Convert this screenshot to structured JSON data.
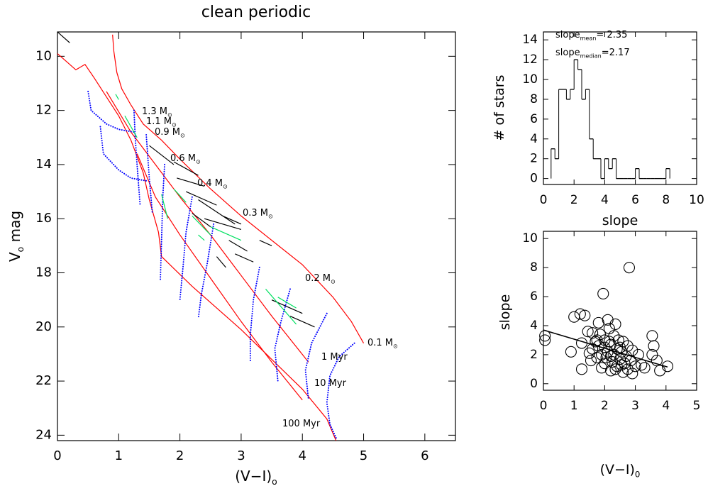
{
  "chart_data": [
    {
      "type": "line",
      "title": "clean periodic",
      "x_label": {
        "text": "(V−I)",
        "sub": "o"
      },
      "y_label": {
        "text": "V",
        "sub": "o",
        "rest": " mag"
      },
      "xlim": [
        0,
        6.5
      ],
      "ylim": [
        24.2,
        9.1
      ],
      "xticks": [
        0,
        1,
        2,
        3,
        4,
        5,
        6
      ],
      "yticks": [
        10,
        12,
        14,
        16,
        18,
        20,
        22,
        24
      ],
      "tracks": [
        {
          "color": "#ff0000",
          "style": "solid",
          "lines": [
            {
              "x": [
                0,
                0.15,
                0.3,
                0.45,
                0.6,
                0.8,
                1.0,
                1.2,
                1.4,
                1.5,
                1.65,
                1.7,
                2.2,
                3,
                3.5,
                4,
                4.4,
                4.55
              ],
              "y": [
                9.9,
                10.2,
                10.5,
                10.3,
                10.8,
                11.5,
                12.2,
                13.1,
                14.3,
                15.3,
                16.5,
                17.4,
                18.5,
                20.1,
                21.2,
                22.3,
                23.4,
                24.2
              ]
            },
            {
              "x": [
                0.9,
                0.92,
                0.97,
                1.05,
                1.2,
                1.4,
                1.7,
                2.0,
                2.5,
                3.0,
                3.5,
                4.0,
                4.5,
                4.8,
                5.0
              ],
              "y": [
                9.2,
                9.8,
                10.6,
                11.2,
                11.8,
                12.5,
                13.1,
                13.8,
                14.9,
                15.9,
                16.8,
                17.7,
                18.9,
                19.8,
                20.6
              ]
            },
            {
              "x": [
                0.8,
                1.2,
                1.6,
                2,
                2.5,
                3,
                3.5,
                4.1
              ],
              "y": [
                11.3,
                12.8,
                14.0,
                15.2,
                16.6,
                18.1,
                19.6,
                21.3
              ]
            },
            {
              "x": [
                1.3,
                1.6,
                2,
                2.5,
                3,
                3.5,
                4.0
              ],
              "y": [
                13.6,
                15.2,
                16.6,
                18.2,
                19.8,
                21.3,
                22.7
              ]
            }
          ]
        },
        {
          "color": "#0000ff",
          "style": "dotted",
          "lines": [
            {
              "x": [
                0.5,
                0.55,
                0.8,
                1.0,
                1.25
              ],
              "y": [
                11.3,
                12,
                12.5,
                12.7,
                12.8
              ]
            },
            {
              "x": [
                0.7,
                0.75,
                1.0,
                1.2,
                1.45
              ],
              "y": [
                12.6,
                13.6,
                14.2,
                14.5,
                14.6
              ]
            },
            {
              "x": [
                1.25,
                1.27,
                1.3,
                1.35
              ],
              "y": [
                12,
                13,
                14,
                15.5
              ]
            },
            {
              "x": [
                1.45,
                1.5,
                1.55
              ],
              "y": [
                12.9,
                14.5,
                15.8
              ]
            },
            {
              "x": [
                1.75,
                1.72,
                1.7,
                1.68
              ],
              "y": [
                14.0,
                15.2,
                16.8,
                18.3
              ]
            },
            {
              "x": [
                2.2,
                2.1,
                2.05,
                2.0
              ],
              "y": [
                15.2,
                16.5,
                17.8,
                19.0
              ]
            },
            {
              "x": [
                2.55,
                2.45,
                2.35,
                2.3
              ],
              "y": [
                16.2,
                17.6,
                18.8,
                19.7
              ]
            },
            {
              "x": [
                3.3,
                3.2,
                3.15,
                3.15
              ],
              "y": [
                17.8,
                19,
                20.3,
                21.3
              ]
            },
            {
              "x": [
                3.8,
                3.65,
                3.55,
                3.6
              ],
              "y": [
                18.6,
                19.8,
                20.8,
                22
              ]
            },
            {
              "x": [
                4.4,
                4.15,
                4.05,
                4.1
              ],
              "y": [
                19.5,
                20.6,
                21.6,
                22.7
              ]
            },
            {
              "x": [
                4.85,
                4.6,
                4.45,
                4.4,
                4.45,
                4.55
              ],
              "y": [
                20.6,
                21.1,
                21.8,
                22.8,
                23.6,
                24.1
              ]
            }
          ]
        }
      ],
      "segments": [
        {
          "color": "#000000",
          "items": [
            [
              1.9,
              13.9,
              2.3,
              14.4
            ],
            [
              1.95,
              14.5,
              2.4,
              14.8
            ],
            [
              2.1,
              15.0,
              2.6,
              15.5
            ],
            [
              2.3,
              15.3,
              2.9,
              16.2
            ],
            [
              2.4,
              16.0,
              3.0,
              16.4
            ],
            [
              2.7,
              15.9,
              3.0,
              16.2
            ],
            [
              2.8,
              16.8,
              3.1,
              17.2
            ],
            [
              2.9,
              17.3,
              3.2,
              17.6
            ],
            [
              3.3,
              16.8,
              3.5,
              17.0
            ],
            [
              3.8,
              19.6,
              4.2,
              20.0
            ],
            [
              3.5,
              19.0,
              4.0,
              19.5
            ],
            [
              2.2,
              15.8,
              2.5,
              16.3
            ],
            [
              2.6,
              17.4,
              2.75,
              17.8
            ],
            [
              1.5,
              13.3,
              1.9,
              14.0
            ],
            [
              0.0,
              9.1,
              0.2,
              9.5
            ]
          ]
        },
        {
          "color": "#00e060",
          "items": [
            [
              0.95,
              11.4,
              1.0,
              11.6
            ],
            [
              1.7,
              15.1,
              1.8,
              16.0
            ],
            [
              2.2,
              15.9,
              2.5,
              16.6
            ],
            [
              2.5,
              16.3,
              3.0,
              16.8
            ],
            [
              3.4,
              18.6,
              3.9,
              19.9
            ],
            [
              3.6,
              18.9,
              3.9,
              19.3
            ],
            [
              1.1,
              12.2,
              1.3,
              13.0
            ],
            [
              1.9,
              14.9,
              2.1,
              15.4
            ],
            [
              2.3,
              16.6,
              2.4,
              16.8
            ]
          ]
        }
      ],
      "annotations": [
        {
          "text": "1.3 M",
          "sub": "⊙"
        },
        {
          "text": "1.1 M",
          "sub": "⊙"
        },
        {
          "text": "0.9 M",
          "sub": "⊙"
        },
        {
          "text": "0.6 M",
          "sub": "⊙"
        },
        {
          "text": "0.4 M",
          "sub": "⊙"
        },
        {
          "text": "0.3 M",
          "sub": "⊙"
        },
        {
          "text": "0.2 M",
          "sub": "⊙"
        },
        {
          "text": "0.1 M",
          "sub": "⊙"
        },
        {
          "text": "1 Myr"
        },
        {
          "text": "10 Myr"
        },
        {
          "text": "100 Myr"
        }
      ]
    },
    {
      "type": "histogram",
      "x_label": {
        "text": "slope"
      },
      "y_label": {
        "text": "# of stars"
      },
      "xlim": [
        0,
        10
      ],
      "ylim": [
        -0.6,
        14.8
      ],
      "xticks": [
        0,
        2,
        4,
        6,
        8,
        10
      ],
      "yticks": [
        0,
        2,
        4,
        6,
        8,
        10,
        12,
        14
      ],
      "color": "#000000",
      "bins": [
        0.5,
        0.75,
        1.0,
        1.25,
        1.5,
        1.75,
        2.0,
        2.25,
        2.5,
        2.75,
        3.0,
        3.25,
        3.5,
        3.75,
        4.0,
        4.25,
        4.5,
        4.75,
        5.0,
        5.25,
        5.5,
        5.75,
        6.0,
        6.25,
        6.5,
        6.75,
        7.0,
        7.25,
        7.5,
        7.75,
        8.0,
        8.25
      ],
      "values": [
        3,
        2,
        9,
        9,
        8,
        9,
        12,
        11,
        8,
        9,
        4,
        2,
        2,
        0,
        2,
        1,
        2,
        0,
        0,
        0,
        0,
        0,
        1,
        0,
        0,
        0,
        0,
        0,
        0,
        0,
        1
      ],
      "annotations": [
        {
          "text": "slope",
          "sub": "mean",
          "rest": "= 2.35"
        },
        {
          "text": "slope",
          "sub": "median",
          "rest": "=2.17"
        }
      ]
    },
    {
      "type": "scatter",
      "x_label": {
        "text": "(V−I)",
        "sub": "0"
      },
      "y_label": {
        "text": "slope"
      },
      "xlim": [
        0,
        5
      ],
      "ylim": [
        -0.45,
        10.5
      ],
      "xticks": [
        0,
        1,
        2,
        3,
        4,
        5
      ],
      "yticks": [
        0,
        2,
        4,
        6,
        8,
        10
      ],
      "color": "#000000",
      "x": [
        0.05,
        0.05,
        0.9,
        1.0,
        1.2,
        1.25,
        1.25,
        1.35,
        1.45,
        1.5,
        1.55,
        1.6,
        1.7,
        1.75,
        1.8,
        1.8,
        1.85,
        1.9,
        1.9,
        1.95,
        2.0,
        2.0,
        2.05,
        2.1,
        2.1,
        2.15,
        2.2,
        2.2,
        2.25,
        2.3,
        2.3,
        2.35,
        2.4,
        2.4,
        2.45,
        2.5,
        2.55,
        2.6,
        2.6,
        2.65,
        2.7,
        2.75,
        2.75,
        2.8,
        2.85,
        2.9,
        2.9,
        3.0,
        3.1,
        3.2,
        3.3,
        3.55,
        3.55,
        3.6,
        3.7,
        3.8,
        4.05,
        2.0,
        2.2,
        2.5,
        1.6,
        2.35,
        2.55,
        1.75,
        2.15
      ],
      "y": [
        3.0,
        3.3,
        2.2,
        4.6,
        4.8,
        1.0,
        2.8,
        4.7,
        3.6,
        2.1,
        1.6,
        3.5,
        2.9,
        3.0,
        2.6,
        4.2,
        3.4,
        2.0,
        1.1,
        6.2,
        2.5,
        3.0,
        1.8,
        4.4,
        2.2,
        3.8,
        0.9,
        2.7,
        1.5,
        3.3,
        2.0,
        4.1,
        1.2,
        2.4,
        3.0,
        1.7,
        2.2,
        0.8,
        2.9,
        1.4,
        1.9,
        2.6,
        1.0,
        8.0,
        1.6,
        2.3,
        0.7,
        1.2,
        2.0,
        1.3,
        1.1,
        3.3,
        2.0,
        2.6,
        1.6,
        0.9,
        1.2,
        1.4,
        1.9,
        2.5,
        2.4,
        1.0,
        1.3,
        1.8,
        2.9
      ],
      "fit": {
        "x": [
          0,
          4.05
        ],
        "y": [
          3.7,
          1.15
        ]
      }
    }
  ]
}
